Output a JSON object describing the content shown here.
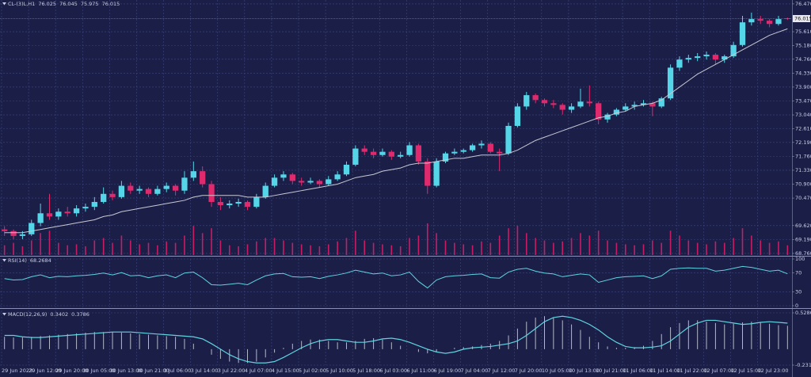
{
  "chart_data": [
    {
      "type": "candlestick",
      "title": "CL-(3)L,H1",
      "up_color": "#55d6e8",
      "down_color": "#e02a6e",
      "grid": true,
      "ylim": [
        68.71,
        76.59
      ],
      "yticks": [
        {
          "value": 76.47,
          "label": "76.470"
        },
        {
          "value": 75.61,
          "label": "75.610"
        },
        {
          "value": 75.18,
          "label": "75.180"
        },
        {
          "value": 74.76,
          "label": "74.760"
        },
        {
          "value": 74.33,
          "label": "74.330"
        },
        {
          "value": 73.9,
          "label": "73.900"
        },
        {
          "value": 73.47,
          "label": "73.470"
        },
        {
          "value": 73.04,
          "label": "73.040"
        },
        {
          "value": 72.61,
          "label": "72.610"
        },
        {
          "value": 72.19,
          "label": "72.190"
        },
        {
          "value": 71.76,
          "label": "71.760"
        },
        {
          "value": 71.33,
          "label": "71.330"
        },
        {
          "value": 70.9,
          "label": "70.900"
        },
        {
          "value": 70.47,
          "label": "70.470"
        },
        {
          "value": 69.62,
          "label": "69.620"
        },
        {
          "value": 69.19,
          "label": "69.190"
        },
        {
          "value": 68.76,
          "label": "68.760"
        }
      ],
      "ohlc": [
        [
          69.5,
          69.6,
          69.3,
          69.45
        ],
        [
          69.45,
          69.5,
          69.2,
          69.3
        ],
        [
          69.3,
          69.45,
          69.2,
          69.35
        ],
        [
          69.35,
          69.8,
          69.3,
          69.7
        ],
        [
          69.7,
          70.3,
          69.6,
          70.0
        ],
        [
          70.0,
          70.6,
          69.8,
          69.9
        ],
        [
          69.9,
          70.15,
          69.8,
          70.05
        ],
        [
          70.05,
          70.2,
          69.9,
          70.0
        ],
        [
          70.0,
          70.25,
          69.9,
          70.15
        ],
        [
          70.15,
          70.3,
          70.05,
          70.2
        ],
        [
          70.2,
          70.5,
          70.1,
          70.35
        ],
        [
          70.35,
          70.8,
          70.3,
          70.6
        ],
        [
          70.6,
          70.7,
          70.4,
          70.5
        ],
        [
          70.5,
          71.0,
          70.45,
          70.85
        ],
        [
          70.85,
          70.95,
          70.6,
          70.7
        ],
        [
          70.7,
          70.85,
          70.6,
          70.75
        ],
        [
          70.75,
          70.8,
          70.5,
          70.6
        ],
        [
          70.6,
          70.85,
          70.55,
          70.75
        ],
        [
          70.75,
          70.95,
          70.65,
          70.85
        ],
        [
          70.85,
          70.9,
          70.55,
          70.7
        ],
        [
          70.7,
          71.3,
          70.6,
          71.1
        ],
        [
          71.1,
          71.6,
          71.0,
          71.3
        ],
        [
          71.3,
          71.45,
          70.8,
          70.9
        ],
        [
          70.9,
          71.0,
          70.2,
          70.35
        ],
        [
          70.35,
          70.5,
          70.1,
          70.25
        ],
        [
          70.25,
          70.4,
          70.15,
          70.3
        ],
        [
          70.3,
          70.45,
          70.2,
          70.35
        ],
        [
          70.35,
          70.4,
          70.1,
          70.2
        ],
        [
          70.2,
          70.6,
          70.15,
          70.5
        ],
        [
          70.5,
          70.95,
          70.45,
          70.85
        ],
        [
          70.85,
          71.2,
          70.8,
          71.1
        ],
        [
          71.1,
          71.3,
          71.0,
          71.2
        ],
        [
          71.2,
          71.25,
          70.9,
          71.0
        ],
        [
          71.0,
          71.1,
          70.85,
          70.95
        ],
        [
          70.95,
          71.1,
          70.9,
          71.0
        ],
        [
          71.0,
          71.05,
          70.8,
          70.9
        ],
        [
          70.9,
          71.15,
          70.85,
          71.05
        ],
        [
          71.05,
          71.3,
          71.0,
          71.2
        ],
        [
          71.2,
          71.6,
          71.15,
          71.5
        ],
        [
          71.5,
          72.1,
          71.45,
          72.0
        ],
        [
          72.0,
          72.1,
          71.8,
          71.9
        ],
        [
          71.9,
          72.0,
          71.7,
          71.8
        ],
        [
          71.8,
          72.0,
          71.75,
          71.9
        ],
        [
          71.9,
          71.95,
          71.65,
          71.75
        ],
        [
          71.75,
          71.9,
          71.7,
          71.8
        ],
        [
          71.8,
          72.2,
          71.75,
          72.1
        ],
        [
          72.1,
          72.15,
          71.5,
          71.6
        ],
        [
          71.6,
          71.7,
          70.6,
          70.85
        ],
        [
          70.85,
          71.7,
          70.8,
          71.6
        ],
        [
          71.6,
          71.9,
          71.55,
          71.85
        ],
        [
          71.85,
          72.0,
          71.8,
          71.9
        ],
        [
          71.9,
          72.0,
          71.85,
          71.95
        ],
        [
          71.95,
          72.15,
          71.9,
          72.1
        ],
        [
          72.1,
          72.25,
          72.0,
          72.15
        ],
        [
          72.15,
          72.2,
          71.85,
          71.9
        ],
        [
          71.9,
          72.0,
          71.3,
          71.85
        ],
        [
          71.85,
          72.8,
          71.8,
          72.7
        ],
        [
          72.7,
          73.4,
          72.65,
          73.3
        ],
        [
          73.3,
          73.75,
          73.2,
          73.65
        ],
        [
          73.65,
          73.7,
          73.4,
          73.5
        ],
        [
          73.5,
          73.55,
          73.3,
          73.4
        ],
        [
          73.4,
          73.5,
          73.25,
          73.35
        ],
        [
          73.35,
          73.4,
          73.05,
          73.2
        ],
        [
          73.2,
          73.4,
          73.1,
          73.3
        ],
        [
          73.3,
          73.85,
          73.25,
          73.45
        ],
        [
          73.45,
          73.95,
          73.3,
          73.4
        ],
        [
          73.4,
          73.45,
          72.75,
          72.9
        ],
        [
          72.9,
          73.1,
          72.8,
          73.05
        ],
        [
          73.05,
          73.25,
          73.0,
          73.2
        ],
        [
          73.2,
          73.4,
          73.15,
          73.3
        ],
        [
          73.3,
          73.45,
          73.2,
          73.35
        ],
        [
          73.35,
          73.5,
          73.3,
          73.4
        ],
        [
          73.4,
          73.45,
          73.0,
          73.3
        ],
        [
          73.3,
          73.6,
          73.25,
          73.55
        ],
        [
          73.55,
          74.6,
          73.5,
          74.5
        ],
        [
          74.5,
          74.85,
          74.4,
          74.75
        ],
        [
          74.75,
          74.9,
          74.65,
          74.8
        ],
        [
          74.8,
          74.95,
          74.7,
          74.85
        ],
        [
          74.85,
          75.0,
          74.75,
          74.9
        ],
        [
          74.9,
          74.95,
          74.6,
          74.75
        ],
        [
          74.75,
          74.9,
          74.65,
          74.85
        ],
        [
          74.85,
          75.3,
          74.8,
          75.2
        ],
        [
          75.2,
          76.1,
          75.15,
          75.9
        ],
        [
          75.9,
          76.2,
          75.8,
          76.0
        ],
        [
          76.0,
          76.1,
          75.85,
          75.95
        ],
        [
          75.95,
          76.0,
          75.75,
          75.85
        ],
        [
          75.85,
          76.1,
          75.8,
          76.0
        ],
        [
          76.025,
          76.045,
          75.975,
          76.015
        ]
      ],
      "ma": {
        "color": "#c8c8d4",
        "values": [
          69.4,
          69.4,
          69.4,
          69.45,
          69.5,
          69.55,
          69.6,
          69.65,
          69.7,
          69.75,
          69.8,
          69.9,
          69.95,
          70.05,
          70.1,
          70.15,
          70.2,
          70.25,
          70.3,
          70.35,
          70.4,
          70.5,
          70.55,
          70.55,
          70.55,
          70.55,
          70.55,
          70.5,
          70.5,
          70.5,
          70.55,
          70.6,
          70.65,
          70.7,
          70.75,
          70.8,
          70.85,
          70.9,
          71.0,
          71.1,
          71.15,
          71.2,
          71.3,
          71.35,
          71.4,
          71.5,
          71.55,
          71.55,
          71.6,
          71.65,
          71.7,
          71.7,
          71.75,
          71.8,
          71.8,
          71.8,
          71.85,
          71.95,
          72.1,
          72.25,
          72.35,
          72.45,
          72.55,
          72.65,
          72.75,
          72.85,
          72.95,
          73.0,
          73.1,
          73.15,
          73.3,
          73.35,
          73.4,
          73.5,
          73.7,
          73.9,
          74.1,
          74.3,
          74.45,
          74.6,
          74.75,
          74.9,
          75.05,
          75.2,
          75.35,
          75.5,
          75.6,
          75.7
        ]
      },
      "volume": {
        "color": "#c81c64",
        "values": [
          20,
          25,
          18,
          30,
          45,
          50,
          25,
          20,
          22,
          18,
          30,
          35,
          25,
          40,
          30,
          22,
          25,
          20,
          28,
          25,
          40,
          60,
          45,
          55,
          30,
          20,
          18,
          22,
          28,
          35,
          35,
          30,
          25,
          22,
          20,
          18,
          22,
          28,
          35,
          50,
          30,
          25,
          22,
          20,
          18,
          35,
          40,
          65,
          45,
          30,
          25,
          22,
          20,
          28,
          25,
          40,
          55,
          60,
          45,
          35,
          30,
          25,
          28,
          35,
          45,
          40,
          50,
          30,
          25,
          22,
          20,
          22,
          30,
          25,
          50,
          40,
          30,
          25,
          22,
          28,
          25,
          35,
          55,
          40,
          30,
          25,
          28,
          20
        ]
      }
    },
    {
      "type": "line",
      "title": "RSI(14)",
      "color": "#5fd3e0",
      "ylim": [
        0,
        100
      ],
      "yticks": [
        100,
        70,
        30,
        0
      ],
      "grid": true,
      "values": [
        58,
        55,
        56,
        62,
        66,
        60,
        63,
        62,
        64,
        65,
        67,
        70,
        66,
        71,
        64,
        65,
        60,
        64,
        66,
        60,
        70,
        72,
        60,
        45,
        44,
        46,
        48,
        45,
        55,
        64,
        68,
        69,
        62,
        61,
        62,
        58,
        63,
        66,
        70,
        76,
        72,
        68,
        70,
        64,
        66,
        72,
        52,
        38,
        55,
        62,
        64,
        65,
        67,
        68,
        60,
        59,
        72,
        78,
        80,
        74,
        70,
        68,
        62,
        65,
        68,
        66,
        50,
        55,
        60,
        62,
        63,
        64,
        58,
        64,
        78,
        80,
        81,
        80,
        80,
        74,
        76,
        80,
        84,
        82,
        78,
        74,
        76,
        68.2684
      ]
    },
    {
      "type": "macd",
      "title": "MACD(12,26,9)",
      "bar_color": "#b4b8c8",
      "color": "#5fd3e0",
      "ylim": [
        -0.2316,
        0.5286
      ],
      "yticks": [
        0.5286,
        -0.2316
      ],
      "grid": true,
      "categories": [
        "29 Jun 2023",
        null,
        null,
        "29 Jun 12:00",
        null,
        null,
        "29 Jun 20:00",
        null,
        null,
        "30 Jun 05:00",
        null,
        null,
        "30 Jun 13:00",
        null,
        null,
        "30 Jun 21:00",
        null,
        null,
        "3 Jul 06:00",
        null,
        null,
        "3 Jul 14:00",
        null,
        null,
        "3 Jul 22:00",
        null,
        null,
        "4 Jul 07:00",
        null,
        null,
        "4 Jul 15:00",
        null,
        null,
        "5 Jul 02:00",
        null,
        null,
        "5 Jul 10:00",
        null,
        null,
        "5 Jul 18:00",
        null,
        null,
        "6 Jul 03:00",
        null,
        null,
        "6 Jul 11:00",
        null,
        null,
        "6 Jul 19:00",
        null,
        null,
        "7 Jul 04:00",
        null,
        null,
        "7 Jul 12:00",
        null,
        null,
        "7 Jul 20:00",
        null,
        null,
        "10 Jul 05:00",
        null,
        null,
        "10 Jul 13:00",
        null,
        null,
        "10 Jul 21:00",
        null,
        null,
        "11 Jul 06:00",
        null,
        null,
        "11 Jul 14:00",
        null,
        null,
        "11 Jul 22:00",
        null,
        null,
        "12 Jul 07:00",
        null,
        null,
        "12 Jul 15:00",
        null,
        null,
        "12 Jul 23:00",
        null,
        null,
        null
      ],
      "macd": [
        0.18,
        0.17,
        0.17,
        0.18,
        0.19,
        0.2,
        0.21,
        0.22,
        0.23,
        0.24,
        0.25,
        0.25,
        0.25,
        0.24,
        0.23,
        0.22,
        0.21,
        0.2,
        0.19,
        0.18,
        0.15,
        0.08,
        0.0,
        -0.08,
        -0.14,
        -0.18,
        -0.2,
        -0.2,
        -0.18,
        -0.12,
        -0.05,
        0.02,
        0.08,
        0.12,
        0.14,
        0.14,
        0.12,
        0.1,
        0.1,
        0.12,
        0.15,
        0.16,
        0.14,
        0.1,
        0.05,
        0.0,
        -0.04,
        -0.06,
        -0.04,
        0.0,
        0.02,
        0.03,
        0.04,
        0.06,
        0.08,
        0.12,
        0.2,
        0.3,
        0.4,
        0.46,
        0.48,
        0.46,
        0.42,
        0.36,
        0.28,
        0.18,
        0.1,
        0.04,
        0.02,
        0.02,
        0.03,
        0.05,
        0.12,
        0.22,
        0.32,
        0.38,
        0.42,
        0.42,
        0.4,
        0.38,
        0.36,
        0.37,
        0.39,
        0.4,
        0.39,
        0.37,
        0.35,
        0.3402
      ],
      "signal": [
        0.2,
        0.2,
        0.18,
        0.17,
        0.17,
        0.18,
        0.19,
        0.2,
        0.21,
        0.22,
        0.23,
        0.24,
        0.25,
        0.25,
        0.25,
        0.24,
        0.23,
        0.22,
        0.21,
        0.2,
        0.19,
        0.18,
        0.15,
        0.08,
        0.0,
        -0.08,
        -0.14,
        -0.18,
        -0.2,
        -0.2,
        -0.18,
        -0.12,
        -0.05,
        0.02,
        0.08,
        0.12,
        0.14,
        0.14,
        0.12,
        0.1,
        0.1,
        0.12,
        0.15,
        0.16,
        0.14,
        0.1,
        0.05,
        0.0,
        -0.04,
        -0.06,
        -0.04,
        0.0,
        0.02,
        0.03,
        0.04,
        0.06,
        0.08,
        0.12,
        0.2,
        0.3,
        0.4,
        0.46,
        0.48,
        0.46,
        0.42,
        0.36,
        0.28,
        0.18,
        0.1,
        0.04,
        0.02,
        0.02,
        0.03,
        0.05,
        0.12,
        0.22,
        0.32,
        0.38,
        0.42,
        0.42,
        0.4,
        0.38,
        0.36,
        0.37,
        0.39,
        0.4,
        0.39,
        0.3786
      ]
    }
  ]
}
